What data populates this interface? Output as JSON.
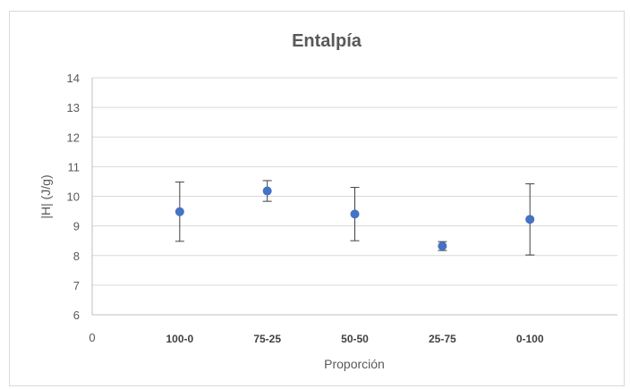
{
  "chart_data": {
    "type": "scatter",
    "title": "Entalpía",
    "xlabel": "Proporción",
    "ylabel": "|H| (J/g)",
    "x_origin_label": "0",
    "categories": [
      "100-0",
      "75-25",
      "50-50",
      "25-75",
      "0-100"
    ],
    "y_ticks": [
      "6",
      "7",
      "8",
      "9",
      "10",
      "11",
      "12",
      "13",
      "14"
    ],
    "ylim": [
      6,
      14
    ],
    "grid": true,
    "legend": "none",
    "series": [
      {
        "values": [
          9.48,
          10.18,
          9.4,
          8.32,
          9.22
        ],
        "error": [
          1.0,
          0.35,
          0.9,
          0.15,
          1.2
        ],
        "color": "#4472c4"
      }
    ]
  }
}
